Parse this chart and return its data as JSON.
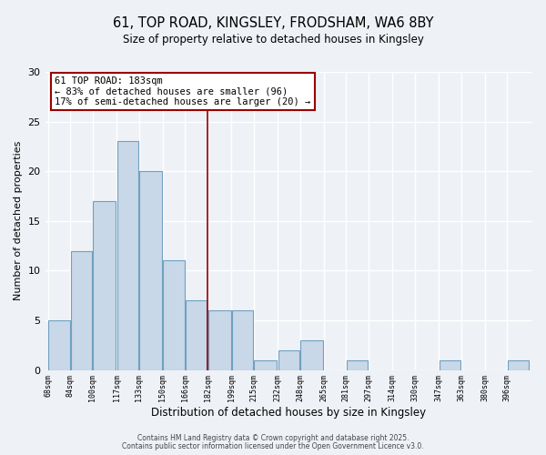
{
  "title": "61, TOP ROAD, KINGSLEY, FRODSHAM, WA6 8BY",
  "subtitle": "Size of property relative to detached houses in Kingsley",
  "xlabel": "Distribution of detached houses by size in Kingsley",
  "ylabel": "Number of detached properties",
  "bar_values": [
    5,
    12,
    17,
    23,
    20,
    11,
    7,
    6,
    6,
    1,
    2,
    3,
    0,
    1,
    0,
    0,
    0,
    1,
    0,
    0,
    1
  ],
  "bin_edges": [
    68,
    84,
    100,
    117,
    133,
    150,
    166,
    182,
    199,
    215,
    232,
    248,
    265,
    281,
    297,
    314,
    330,
    347,
    363,
    380,
    396,
    412
  ],
  "tick_labels": [
    "68sqm",
    "84sqm",
    "100sqm",
    "117sqm",
    "133sqm",
    "150sqm",
    "166sqm",
    "182sqm",
    "199sqm",
    "215sqm",
    "232sqm",
    "248sqm",
    "265sqm",
    "281sqm",
    "297sqm",
    "314sqm",
    "330sqm",
    "347sqm",
    "363sqm",
    "380sqm",
    "396sqm"
  ],
  "bar_color": "#c8d8e8",
  "bar_edge_color": "#6fa0c0",
  "vline_x": 182,
  "vline_color": "#990000",
  "ylim": [
    0,
    30
  ],
  "yticks": [
    0,
    5,
    10,
    15,
    20,
    25,
    30
  ],
  "annotation_line1": "61 TOP ROAD: 183sqm",
  "annotation_line2": "← 83% of detached houses are smaller (96)",
  "annotation_line3": "17% of semi-detached houses are larger (20) →",
  "footer1": "Contains HM Land Registry data © Crown copyright and database right 2025.",
  "footer2": "Contains public sector information licensed under the Open Government Licence v3.0.",
  "bg_color": "#eef2f7",
  "grid_color": "#ffffff",
  "ann_box_color": "#ffffff",
  "ann_border_color": "#990000"
}
